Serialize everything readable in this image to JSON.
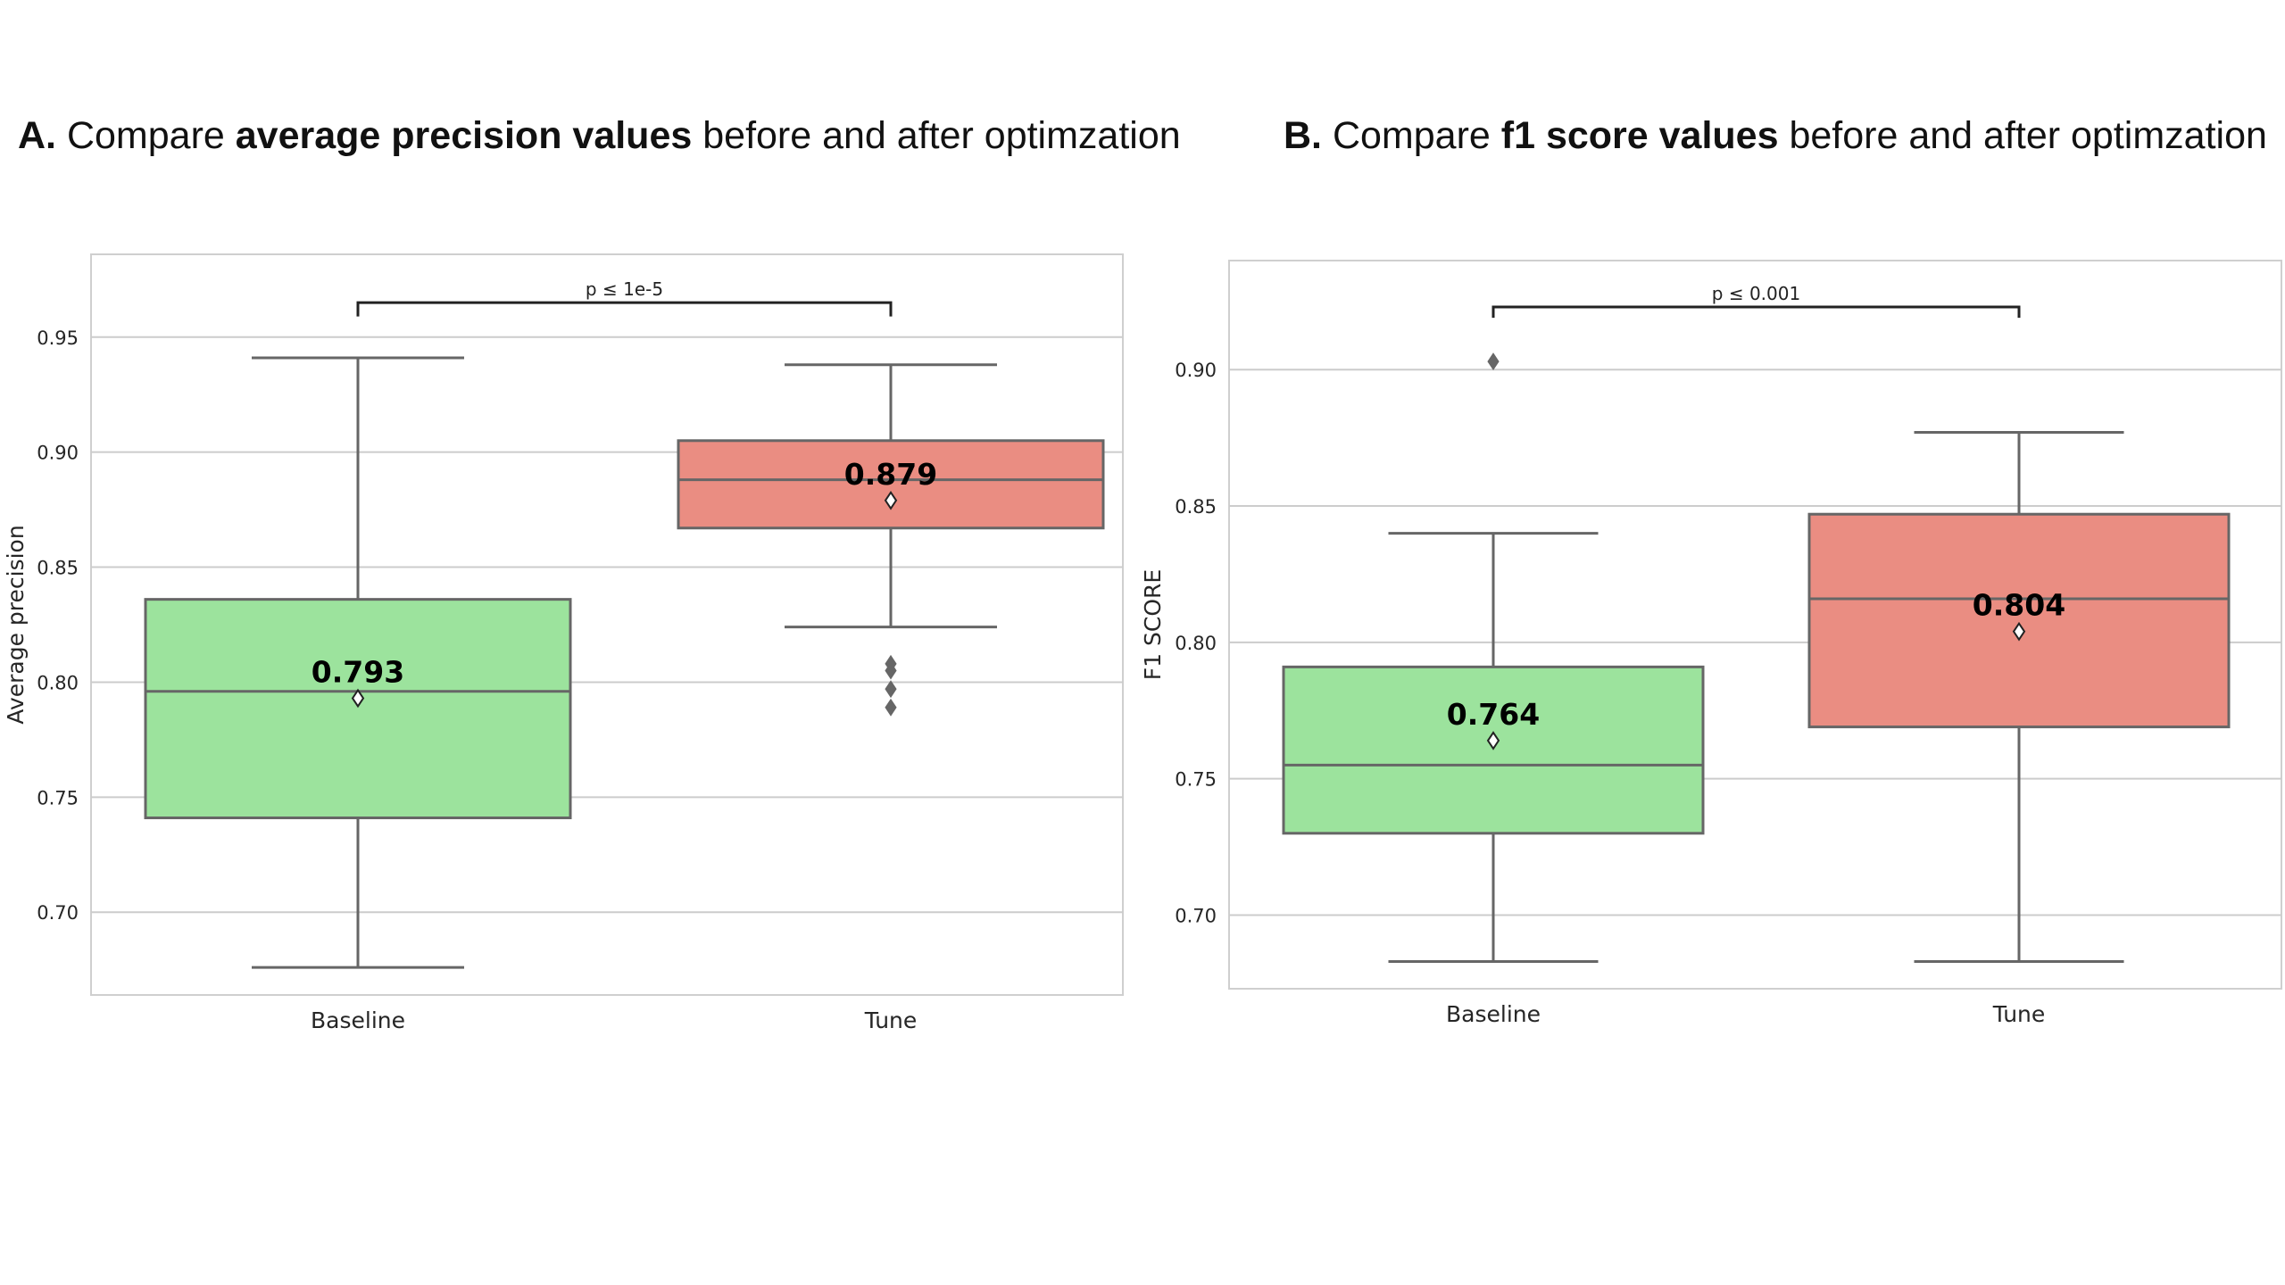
{
  "panels": [
    {
      "title": {
        "letter": "A.",
        "pre": "Compare",
        "bold": "average precision values",
        "post": "before and after optimzation"
      },
      "chart_data": {
        "type": "box",
        "categories": [
          "Baseline",
          "Tune"
        ],
        "ylabel": "Average precision",
        "xlabel": "",
        "ylim": [
          0.664,
          0.986
        ],
        "yticks": [
          0.7,
          0.75,
          0.8,
          0.85,
          0.9,
          0.95
        ],
        "ytick_labels": [
          "0.70",
          "0.75",
          "0.80",
          "0.85",
          "0.90",
          "0.95"
        ],
        "grid": "horizontal",
        "boxes": [
          {
            "category": "Baseline",
            "whisker_low": 0.676,
            "q1": 0.741,
            "median": 0.796,
            "q3": 0.836,
            "whisker_high": 0.941,
            "mean": 0.793,
            "mean_label": "0.793",
            "outliers": [],
            "color": "#9ce39d"
          },
          {
            "category": "Tune",
            "whisker_low": 0.824,
            "q1": 0.867,
            "median": 0.888,
            "q3": 0.905,
            "whisker_high": 0.938,
            "mean": 0.879,
            "mean_label": "0.879",
            "outliers": [
              0.808,
              0.805,
              0.797,
              0.789
            ],
            "color": "#ea8d82"
          }
        ],
        "significance": {
          "label": "p ≤ 1e-5",
          "y": 0.965,
          "tick": 0.006
        }
      }
    },
    {
      "title": {
        "letter": "B.",
        "pre": "Compare",
        "bold": "f1 score values",
        "post": "before and after optimzation"
      },
      "chart_data": {
        "type": "box",
        "categories": [
          "Baseline",
          "Tune"
        ],
        "ylabel": "F1 SCORE",
        "xlabel": "",
        "ylim": [
          0.673,
          0.94
        ],
        "yticks": [
          0.7,
          0.75,
          0.8,
          0.85,
          0.9
        ],
        "ytick_labels": [
          "0.70",
          "0.75",
          "0.80",
          "0.85",
          "0.90"
        ],
        "grid": "horizontal",
        "boxes": [
          {
            "category": "Baseline",
            "whisker_low": 0.683,
            "q1": 0.73,
            "median": 0.755,
            "q3": 0.791,
            "whisker_high": 0.84,
            "mean": 0.764,
            "mean_label": "0.764",
            "outliers": [
              0.903
            ],
            "color": "#9ce39d"
          },
          {
            "category": "Tune",
            "whisker_low": 0.683,
            "q1": 0.769,
            "median": 0.816,
            "q3": 0.847,
            "whisker_high": 0.877,
            "mean": 0.804,
            "mean_label": "0.804",
            "outliers": [],
            "color": "#ea8d82"
          }
        ],
        "significance": {
          "label": "p ≤ 0.001",
          "y": 0.923,
          "tick": 0.004
        }
      }
    }
  ]
}
